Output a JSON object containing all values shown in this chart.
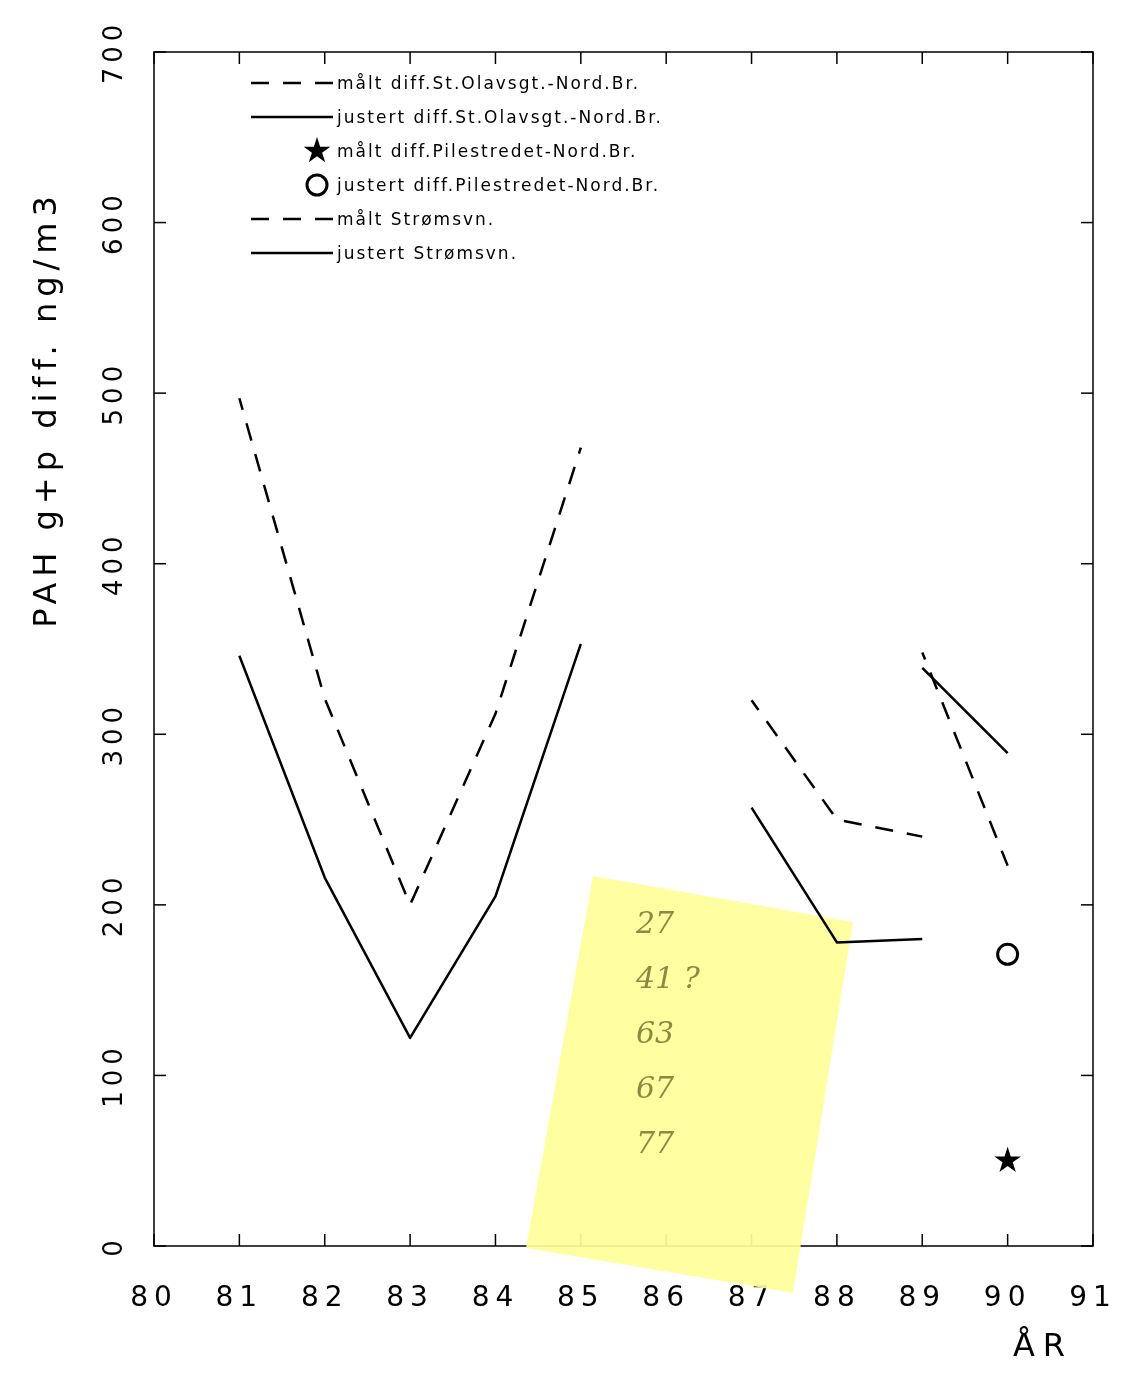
{
  "chart_data": {
    "type": "line",
    "xlabel": "ÅR",
    "ylabel": "PAH g+p diff. ng/m3",
    "xlim": [
      80,
      91
    ],
    "xticks": [
      80,
      81,
      82,
      83,
      84,
      85,
      86,
      87,
      88,
      89,
      90,
      91
    ],
    "ylim": [
      0,
      700
    ],
    "yticks": [
      0,
      100,
      200,
      300,
      400,
      500,
      600,
      700
    ],
    "grid": false,
    "legend": "top",
    "tick_labels": "xy",
    "series": [
      {
        "name": "målt diff.St.Olavsgt.-Nord.Br.",
        "color": "#000000",
        "line_style": "dashed",
        "marker": "none",
        "x": [
          81,
          82,
          83,
          84,
          85,
          86,
          87,
          88,
          89
        ],
        "values": [
          497,
          321,
          200,
          312,
          468,
          null,
          320,
          250,
          240
        ]
      },
      {
        "name": "justert diff.St.Olavsgt.-Nord.Br.",
        "color": "#000000",
        "line_style": "solid",
        "marker": "none",
        "x": [
          81,
          82,
          83,
          84,
          85,
          86,
          87,
          88,
          89
        ],
        "values": [
          346,
          216,
          122,
          205,
          353,
          null,
          257,
          178,
          180
        ]
      },
      {
        "name": "målt diff.Pilestredet-Nord.Br.",
        "color": "#000000",
        "type": "scatter",
        "marker": "star",
        "x": [
          90
        ],
        "values": [
          50
        ]
      },
      {
        "name": "justert diff.Pilestredet-Nord.Br.",
        "color": "#000000",
        "type": "scatter",
        "marker": "circle",
        "x": [
          90
        ],
        "values": [
          171
        ]
      },
      {
        "name": "målt Strømsvn.",
        "color": "#000000",
        "line_style": "dashed",
        "marker": "none",
        "x": [
          89,
          90
        ],
        "values": [
          348,
          223
        ]
      },
      {
        "name": "justert Strømsvn.",
        "color": "#000000",
        "line_style": "solid",
        "marker": "none",
        "x": [
          89,
          90
        ],
        "values": [
          339,
          289
        ]
      }
    ],
    "annotations": [
      "27",
      "41 ?",
      "63",
      "67",
      "77"
    ]
  }
}
